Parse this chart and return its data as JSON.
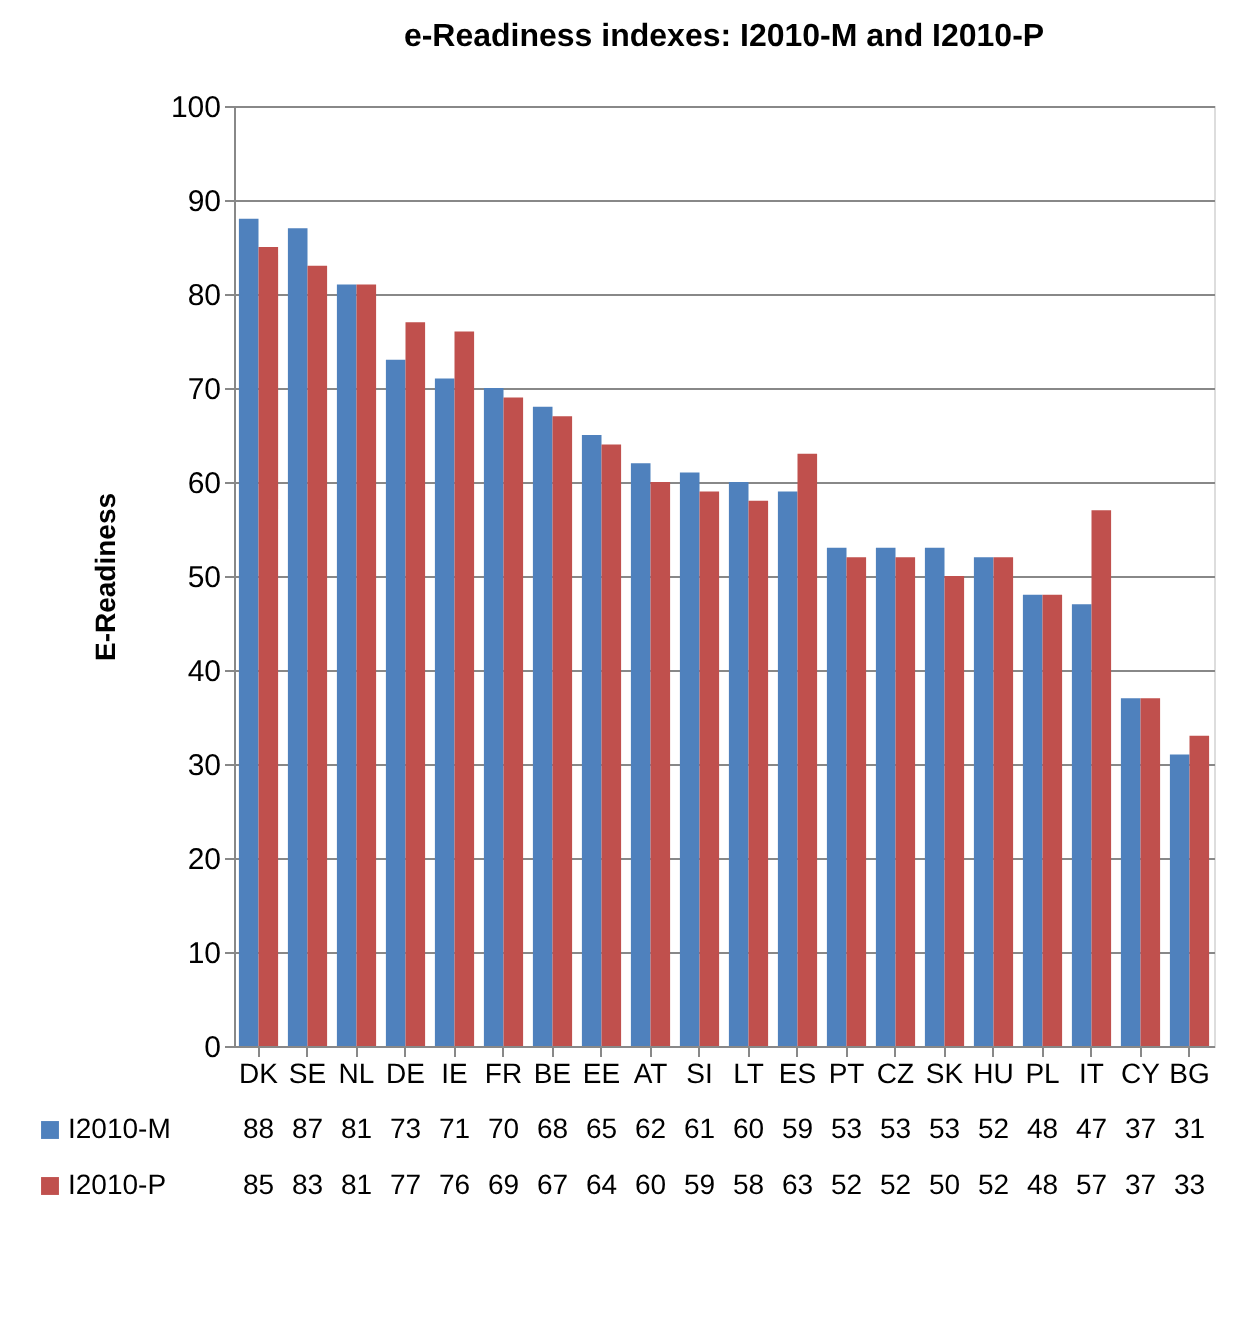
{
  "chart_data": {
    "type": "bar",
    "title": "e-Readiness indexes: I2010-M and I2010-P",
    "ylabel": "E-Readiness",
    "categories": [
      "DK",
      "SE",
      "NL",
      "DE",
      "IE",
      "FR",
      "BE",
      "EE",
      "AT",
      "SI",
      "LT",
      "ES",
      "PT",
      "CZ",
      "SK",
      "HU",
      "PL",
      "IT",
      "CY",
      "BG"
    ],
    "series": [
      {
        "name": "I2010-M",
        "color": "#4f81bd",
        "values": [
          88,
          87,
          81,
          73,
          71,
          70,
          68,
          65,
          62,
          61,
          60,
          59,
          53,
          53,
          53,
          52,
          48,
          47,
          37,
          31
        ]
      },
      {
        "name": "I2010-P",
        "color": "#c0504d",
        "values": [
          85,
          83,
          81,
          77,
          76,
          69,
          67,
          64,
          60,
          59,
          58,
          63,
          52,
          52,
          50,
          52,
          48,
          57,
          37,
          33
        ]
      }
    ],
    "ylim": [
      0,
      100
    ],
    "yticks": [
      0,
      10,
      20,
      30,
      40,
      50,
      60,
      70,
      80,
      90,
      100
    ],
    "grid": "y",
    "legend": "bottom",
    "data_labels": true
  }
}
